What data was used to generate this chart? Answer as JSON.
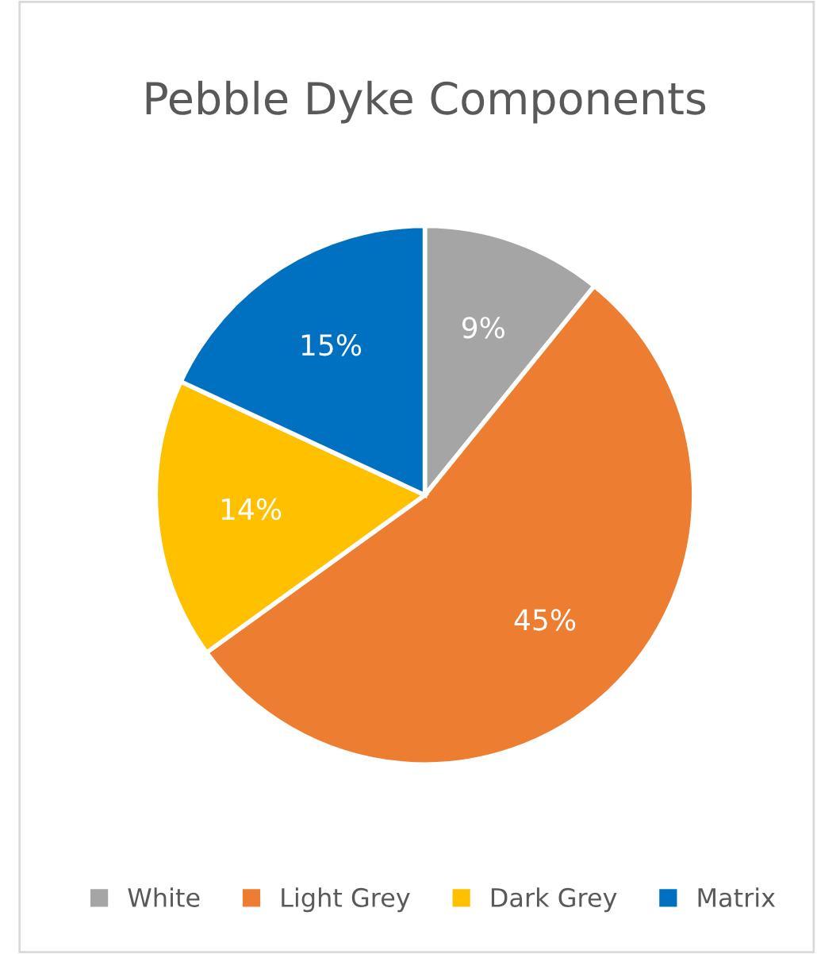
{
  "chart_data": {
    "type": "pie",
    "title": "Pebble Dyke Components",
    "categories": [
      "White",
      "Light Grey",
      "Dark Grey",
      "Matrix"
    ],
    "values": [
      9,
      45,
      14,
      15
    ],
    "colors": [
      "#a5a5a5",
      "#ed7d31",
      "#ffc000",
      "#0070c0"
    ],
    "value_labels": [
      "9%",
      "45%",
      "14%",
      "15%"
    ],
    "legend": "bottom"
  }
}
